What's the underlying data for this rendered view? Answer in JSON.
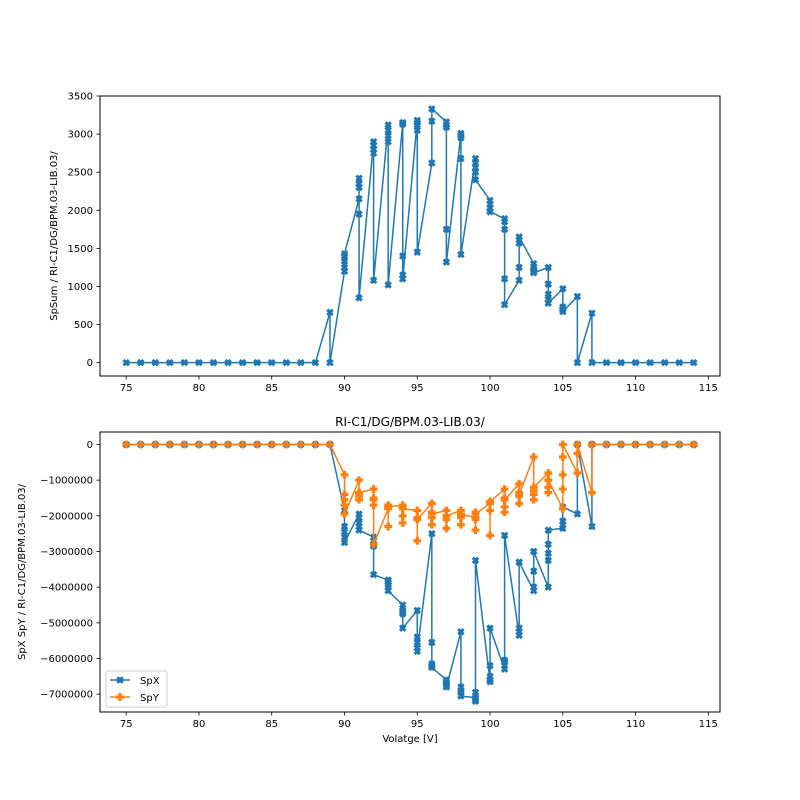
{
  "figure": {
    "background": "#ffffff"
  },
  "colors": {
    "spx": "#1f77b4",
    "spy": "#ff7f0e",
    "spsum": "#1f77b4"
  },
  "chart_data": [
    {
      "type": "line",
      "title": "",
      "xlabel": "",
      "ylabel": "SpSum / RI-C1/DG/BPM.03-LIB.03/",
      "xlim": [
        73.2,
        115.8
      ],
      "ylim": [
        -175,
        3500
      ],
      "xticks": [
        75,
        80,
        85,
        90,
        95,
        100,
        105,
        110,
        115
      ],
      "xtick_labels": [
        "75",
        "80",
        "85",
        "90",
        "95",
        "100",
        "105",
        "110",
        "115"
      ],
      "yticks": [
        0,
        500,
        1000,
        1500,
        2000,
        2500,
        3000,
        3500
      ],
      "ytick_labels": [
        "0",
        "500",
        "1000",
        "1500",
        "2000",
        "2500",
        "3000",
        "3500"
      ],
      "grid": false,
      "series": [
        {
          "name": "SpSum",
          "marker": "x-filled",
          "x": [
            75,
            76,
            77,
            78,
            79,
            80,
            81,
            82,
            83,
            84,
            85,
            86,
            87,
            88,
            89,
            89,
            90,
            90,
            90,
            90,
            90,
            91,
            91,
            91,
            91,
            91,
            91,
            92,
            92,
            92,
            92,
            92,
            93,
            93,
            93,
            93,
            93,
            94,
            94,
            94,
            94,
            94,
            95,
            95,
            95,
            95,
            95,
            96,
            96,
            96,
            97,
            97,
            97,
            97,
            97,
            98,
            98,
            98,
            98,
            98,
            99,
            99,
            99,
            99,
            99,
            100,
            100,
            100,
            100,
            100,
            101,
            101,
            101,
            101,
            101,
            102,
            102,
            102,
            102,
            102,
            103,
            103,
            103,
            103,
            103,
            104,
            104,
            104,
            104,
            104,
            105,
            105,
            105,
            105,
            106,
            106,
            107,
            107,
            108,
            109,
            110,
            111,
            112,
            113,
            114
          ],
          "y": [
            0,
            0,
            0,
            0,
            0,
            0,
            0,
            0,
            0,
            0,
            0,
            0,
            0,
            0,
            660,
            0,
            1200,
            1250,
            1330,
            1400,
            1430,
            2150,
            2420,
            2350,
            2300,
            1950,
            850,
            2900,
            2850,
            2800,
            2750,
            1080,
            3120,
            3050,
            2980,
            2900,
            1020,
            3150,
            3130,
            1400,
            1150,
            1100,
            3180,
            3150,
            3120,
            3050,
            1450,
            2620,
            3170,
            3330,
            3160,
            3120,
            3090,
            1750,
            1320,
            3010,
            2980,
            2950,
            2680,
            1420,
            2680,
            2620,
            2560,
            2500,
            2400,
            2130,
            2080,
            2030,
            1990,
            1980,
            1890,
            1850,
            1750,
            1100,
            760,
            1080,
            1250,
            1570,
            1610,
            1650,
            1300,
            1260,
            1230,
            1200,
            1180,
            1250,
            1030,
            900,
            830,
            780,
            970,
            730,
            700,
            670,
            870,
            0,
            650,
            0,
            0,
            0,
            0,
            0,
            0,
            0,
            0
          ]
        }
      ]
    },
    {
      "type": "line",
      "title": "RI-C1/DG/BPM.03-LIB.03/",
      "xlabel": "Volatge [V]",
      "ylabel": "SpX SpY / RI-C1/DG/BPM.03-LIB.03/",
      "xlim": [
        73.2,
        115.8
      ],
      "ylim": [
        -7500000,
        350000
      ],
      "xticks": [
        75,
        80,
        85,
        90,
        95,
        100,
        105,
        110,
        115
      ],
      "xtick_labels": [
        "75",
        "80",
        "85",
        "90",
        "95",
        "100",
        "105",
        "110",
        "115"
      ],
      "yticks": [
        0,
        -1000000,
        -2000000,
        -3000000,
        -4000000,
        -5000000,
        -6000000,
        -7000000
      ],
      "ytick_labels": [
        "0",
        "−1000000",
        "−2000000",
        "−3000000",
        "−4000000",
        "−5000000",
        "−6000000",
        "−7000000"
      ],
      "grid": false,
      "legend": {
        "position": "lower-left",
        "entries": [
          "SpX",
          "SpY"
        ]
      },
      "series": [
        {
          "name": "SpX",
          "marker": "x-filled",
          "x": [
            75,
            76,
            77,
            78,
            79,
            80,
            81,
            82,
            83,
            84,
            85,
            86,
            87,
            88,
            89,
            90,
            90,
            90,
            90,
            90,
            91,
            91,
            91,
            91,
            91,
            92,
            92,
            92,
            92,
            92,
            93,
            93,
            93,
            93,
            93,
            94,
            94,
            94,
            94,
            94,
            95,
            95,
            95,
            95,
            95,
            96,
            96,
            96,
            96,
            96,
            97,
            97,
            97,
            97,
            97,
            98,
            98,
            98,
            98,
            98,
            99,
            99,
            99,
            99,
            99,
            100,
            100,
            100,
            100,
            100,
            101,
            101,
            101,
            101,
            101,
            102,
            102,
            102,
            102,
            102,
            103,
            103,
            103,
            103,
            103,
            104,
            104,
            104,
            104,
            104,
            105,
            105,
            105,
            105,
            106,
            106,
            107,
            107,
            108,
            109,
            110,
            111,
            112,
            113,
            114
          ],
          "y": [
            0,
            0,
            0,
            0,
            0,
            0,
            0,
            0,
            0,
            0,
            0,
            0,
            0,
            0,
            0,
            -1850000,
            -2300000,
            -2450000,
            -2600000,
            -2750000,
            -1950000,
            -2050000,
            -2200000,
            -2300000,
            -2400000,
            -2600000,
            -2700000,
            -2800000,
            -2850000,
            -3650000,
            -3800000,
            -3850000,
            -3950000,
            -4000000,
            -4100000,
            -4500000,
            -4650000,
            -4700000,
            -4750000,
            -5150000,
            -4650000,
            -5400000,
            -5550000,
            -5700000,
            -5800000,
            -2500000,
            -5550000,
            -6150000,
            -6200000,
            -6250000,
            -6600000,
            -6650000,
            -6700000,
            -6750000,
            -6800000,
            -5250000,
            -6800000,
            -6900000,
            -6950000,
            -7050000,
            -7100000,
            -7150000,
            -7200000,
            -6950000,
            -3250000,
            -6650000,
            -6600000,
            -6500000,
            -6200000,
            -5150000,
            -6300000,
            -6200000,
            -6100000,
            -6050000,
            -2550000,
            -5350000,
            -5250000,
            -5150000,
            -3300000,
            -3300000,
            -4100000,
            -4000000,
            -3550000,
            -3000000,
            -3000000,
            -4000000,
            -3250000,
            -3050000,
            -2800000,
            -2400000,
            -2350000,
            -2250000,
            -2150000,
            -1750000,
            -1950000,
            0,
            -2300000,
            0,
            0,
            0,
            0,
            0,
            0,
            0,
            0
          ]
        },
        {
          "name": "SpY",
          "marker": "plus-filled",
          "x": [
            75,
            76,
            77,
            78,
            79,
            80,
            81,
            82,
            83,
            84,
            85,
            86,
            87,
            88,
            89,
            90,
            90,
            90,
            90,
            90,
            91,
            91,
            91,
            91,
            91,
            92,
            92,
            92,
            92,
            92,
            93,
            93,
            93,
            93,
            93,
            94,
            94,
            94,
            94,
            94,
            95,
            95,
            95,
            95,
            95,
            96,
            96,
            96,
            96,
            96,
            97,
            97,
            97,
            97,
            97,
            98,
            98,
            98,
            98,
            98,
            99,
            99,
            99,
            99,
            99,
            100,
            100,
            100,
            100,
            100,
            101,
            101,
            101,
            101,
            101,
            102,
            102,
            102,
            102,
            102,
            103,
            103,
            103,
            103,
            103,
            104,
            104,
            104,
            104,
            104,
            105,
            105,
            105,
            105,
            105,
            106,
            106,
            106,
            107,
            107,
            108,
            109,
            110,
            111,
            112,
            113,
            114
          ],
          "y": [
            0,
            0,
            0,
            0,
            0,
            0,
            0,
            0,
            0,
            0,
            0,
            0,
            0,
            0,
            0,
            -850000,
            -1400000,
            -1550000,
            -1700000,
            -1950000,
            -1000000,
            -1350000,
            -1450000,
            -1550000,
            -1350000,
            -1250000,
            -1500000,
            -1550000,
            -1700000,
            -2800000,
            -1800000,
            -1750000,
            -1700000,
            -2300000,
            -1750000,
            -1700000,
            -1750000,
            -2000000,
            -2200000,
            -1800000,
            -1850000,
            -2050000,
            -2100000,
            -2700000,
            -2100000,
            -1650000,
            -1900000,
            -2050000,
            -2250000,
            -1950000,
            -1850000,
            -2000000,
            -2100000,
            -2350000,
            -2000000,
            -1850000,
            -2000000,
            -2050000,
            -2250000,
            -1950000,
            -2050000,
            -1900000,
            -2100000,
            -2400000,
            -1950000,
            -1650000,
            -1850000,
            -2550000,
            -1600000,
            -1600000,
            -1250000,
            -1500000,
            -1750000,
            -1900000,
            -1550000,
            -1100000,
            -1350000,
            -1450000,
            -1650000,
            -1400000,
            -350000,
            -1300000,
            -1400000,
            -1550000,
            -1200000,
            -800000,
            -1000000,
            -1200000,
            -1350000,
            -1000000,
            -1800000,
            -1250000,
            -850000,
            -350000,
            0,
            -800000,
            -250000,
            0,
            -1350000,
            0,
            0,
            0,
            0,
            0,
            0,
            0,
            0
          ]
        }
      ]
    }
  ]
}
